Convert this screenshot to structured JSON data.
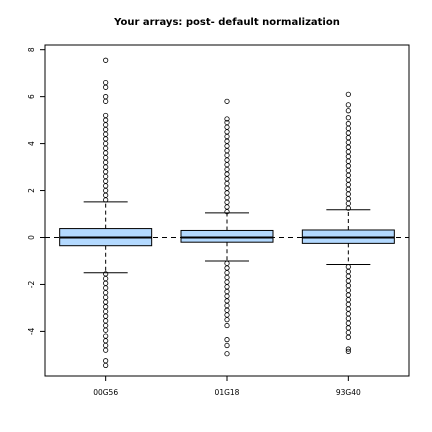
{
  "chart_data": {
    "type": "boxplot",
    "title": "Your arrays: post- default normalization",
    "xlabel": "",
    "ylabel": "",
    "ylim": [
      -5.9,
      8.2
    ],
    "yticks": [
      8,
      6,
      4,
      2,
      0,
      -2,
      -4
    ],
    "ytick_labels": [
      "8",
      "6",
      "4",
      "2",
      "0",
      "-2",
      "-4"
    ],
    "reference_line": {
      "y": 0,
      "style": "dashed"
    },
    "grid": false,
    "box_fill": "#b3d9ff",
    "categories": [
      "00G56",
      "01G18",
      "93G40"
    ],
    "series": [
      {
        "q1": -0.35,
        "median": 0.0,
        "q3": 0.38,
        "whisker_low": -1.5,
        "whisker_high": 1.52,
        "outliers_high": [
          1.6,
          1.8,
          2.0,
          2.2,
          2.4,
          2.6,
          2.8,
          3.0,
          3.2,
          3.4,
          3.6,
          3.8,
          4.0,
          4.2,
          4.4,
          4.6,
          4.8,
          5.0,
          5.2,
          5.8,
          6.0,
          6.4,
          6.6,
          7.55
        ],
        "outliers_low": [
          -1.55,
          -1.75,
          -1.95,
          -2.15,
          -2.35,
          -2.55,
          -2.75,
          -2.95,
          -3.15,
          -3.35,
          -3.55,
          -3.75,
          -3.95,
          -4.2,
          -4.4,
          -4.6,
          -4.8,
          -5.25,
          -5.45
        ]
      },
      {
        "q1": -0.2,
        "median": 0.0,
        "q3": 0.3,
        "whisker_low": -1.0,
        "whisker_high": 1.05,
        "outliers_high": [
          1.1,
          1.3,
          1.5,
          1.7,
          1.9,
          2.1,
          2.3,
          2.5,
          2.7,
          2.9,
          3.1,
          3.3,
          3.5,
          3.7,
          3.9,
          4.1,
          4.3,
          4.5,
          4.7,
          4.9,
          5.05,
          5.8
        ],
        "outliers_low": [
          -1.1,
          -1.3,
          -1.5,
          -1.7,
          -1.9,
          -2.1,
          -2.3,
          -2.5,
          -2.7,
          -2.9,
          -3.1,
          -3.3,
          -3.5,
          -3.75,
          -4.35,
          -4.6,
          -4.95
        ]
      },
      {
        "q1": -0.25,
        "median": 0.0,
        "q3": 0.32,
        "whisker_low": -1.15,
        "whisker_high": 1.18,
        "outliers_high": [
          1.25,
          1.45,
          1.65,
          1.85,
          2.05,
          2.25,
          2.45,
          2.65,
          2.85,
          3.05,
          3.25,
          3.45,
          3.65,
          3.85,
          4.05,
          4.25,
          4.45,
          4.65,
          4.85,
          5.1,
          5.4,
          5.65,
          6.1
        ],
        "outliers_low": [
          -1.25,
          -1.45,
          -1.65,
          -1.85,
          -2.05,
          -2.25,
          -2.45,
          -2.65,
          -2.85,
          -3.05,
          -3.25,
          -3.45,
          -3.65,
          -3.85,
          -4.05,
          -4.25,
          -4.85,
          -4.75
        ]
      }
    ]
  }
}
